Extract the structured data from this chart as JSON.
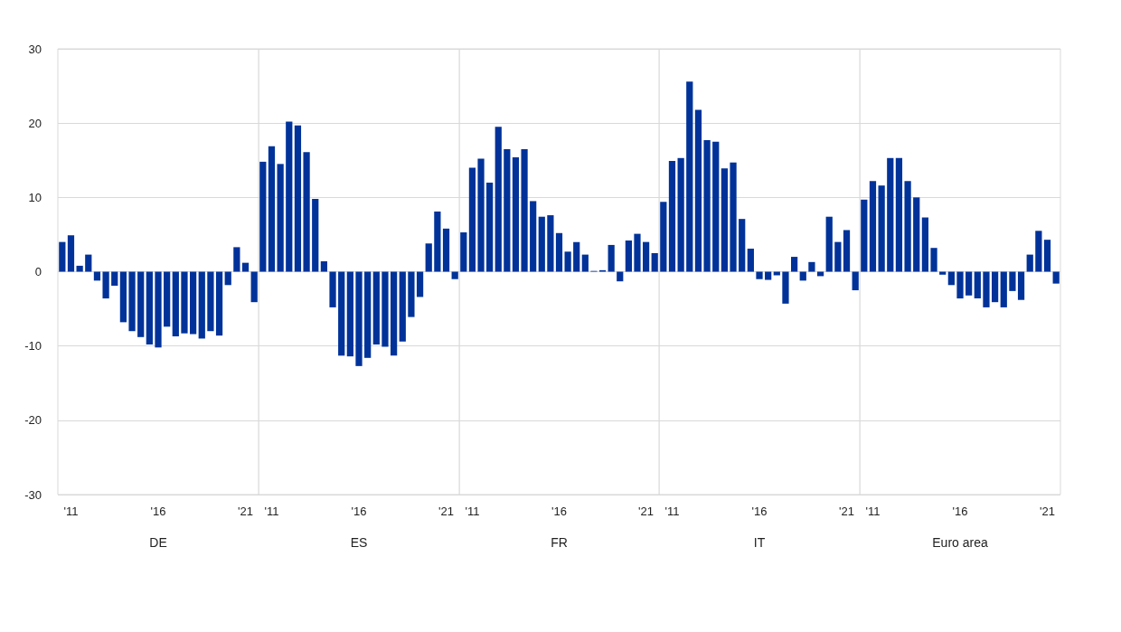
{
  "chart_data": [
    {
      "type": "bar",
      "xlabel": "DE",
      "categories": [
        null,
        "'11",
        null,
        null,
        null,
        null,
        null,
        null,
        null,
        null,
        null,
        "'16",
        null,
        null,
        null,
        null,
        null,
        null,
        null,
        null,
        null,
        "'21",
        null
      ],
      "color": "#003299",
      "values": [
        4.0,
        4.9,
        0.8,
        2.3,
        -1.2,
        -3.6,
        -1.9,
        -6.8,
        -8.0,
        -8.8,
        -9.8,
        -10.2,
        -7.4,
        -8.7,
        -8.3,
        -8.4,
        -9.0,
        -8.0,
        -8.6,
        -1.8,
        3.3,
        1.2,
        -4.1
      ],
      "ylim": [
        -30,
        30
      ],
      "yticks": [
        -30,
        -20,
        -10,
        0,
        10,
        20,
        30
      ],
      "grid": "y"
    },
    {
      "type": "bar",
      "xlabel": "ES",
      "categories": [
        null,
        "'11",
        null,
        null,
        null,
        null,
        null,
        null,
        null,
        null,
        null,
        "'16",
        null,
        null,
        null,
        null,
        null,
        null,
        null,
        null,
        null,
        "'21",
        null
      ],
      "color": "#003299",
      "values": [
        14.8,
        16.9,
        14.5,
        20.2,
        19.7,
        16.1,
        9.8,
        1.4,
        -4.8,
        -11.3,
        -11.4,
        -12.7,
        -11.6,
        -9.8,
        -10.1,
        -11.3,
        -9.4,
        -6.1,
        -3.4,
        3.8,
        8.1,
        5.8,
        -1.0
      ],
      "ylim": [
        -30,
        30
      ],
      "yticks": [
        -30,
        -20,
        -10,
        0,
        10,
        20,
        30
      ],
      "grid": "y",
      "tick_labels": "x"
    },
    {
      "type": "bar",
      "xlabel": "FR",
      "categories": [
        null,
        "'11",
        null,
        null,
        null,
        null,
        null,
        null,
        null,
        null,
        null,
        "'16",
        null,
        null,
        null,
        null,
        null,
        null,
        null,
        null,
        null,
        "'21",
        null
      ],
      "color": "#003299",
      "values": [
        5.3,
        14.0,
        15.2,
        12.0,
        19.5,
        16.5,
        15.4,
        16.5,
        9.5,
        7.4,
        7.6,
        5.2,
        2.7,
        4.0,
        2.3,
        0.1,
        0.2,
        3.6,
        -1.3,
        4.2,
        5.1,
        4.0,
        2.5
      ],
      "ylim": [
        -30,
        30
      ],
      "yticks": [
        -30,
        -20,
        -10,
        0,
        10,
        20,
        30
      ],
      "grid": "y",
      "tick_labels": "x"
    },
    {
      "type": "bar",
      "xlabel": "IT",
      "categories": [
        null,
        "'11",
        null,
        null,
        null,
        null,
        null,
        null,
        null,
        null,
        null,
        "'16",
        null,
        null,
        null,
        null,
        null,
        null,
        null,
        null,
        null,
        "'21",
        null
      ],
      "color": "#003299",
      "values": [
        9.4,
        14.9,
        15.3,
        25.6,
        21.8,
        17.7,
        17.5,
        13.9,
        14.7,
        7.1,
        3.1,
        -1.0,
        -1.1,
        -0.5,
        -4.3,
        2.0,
        -1.2,
        1.3,
        -0.6,
        7.4,
        4.0,
        5.6,
        -2.5
      ],
      "ylim": [
        -30,
        30
      ],
      "yticks": [
        -30,
        -20,
        -10,
        0,
        10,
        20,
        30
      ],
      "grid": "y",
      "tick_labels": "x"
    },
    {
      "type": "bar",
      "xlabel": "Euro area",
      "categories": [
        null,
        "'11",
        null,
        null,
        null,
        null,
        null,
        null,
        null,
        null,
        null,
        "'16",
        null,
        null,
        null,
        null,
        null,
        null,
        null,
        null,
        null,
        "'21",
        null
      ],
      "color": "#003299",
      "values": [
        9.7,
        12.2,
        11.6,
        15.3,
        15.3,
        12.2,
        10.0,
        7.3,
        3.2,
        -0.4,
        -1.8,
        -3.6,
        -3.2,
        -3.6,
        -4.8,
        -4.1,
        -4.8,
        -2.6,
        -3.8,
        2.3,
        5.5,
        4.3,
        -1.6
      ],
      "ylim": [
        -30,
        30
      ],
      "yticks": [
        -30,
        -20,
        -10,
        0,
        10,
        20,
        30
      ],
      "grid": "y",
      "tick_labels": "x"
    }
  ]
}
